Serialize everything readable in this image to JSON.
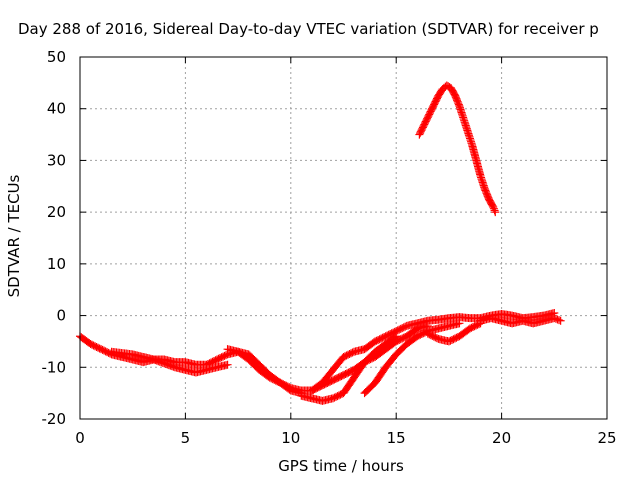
{
  "chart_data": {
    "type": "scatter",
    "title": "Day 288 of 2016, Sidereal Day-to-day VTEC variation (SDTVAR) for receiver p",
    "xlabel": "GPS time / hours",
    "ylabel": "SDTVAR / TECUs",
    "xlim": [
      0,
      25
    ],
    "ylim": [
      -20,
      50
    ],
    "xticks": [
      0,
      5,
      10,
      15,
      20,
      25
    ],
    "yticks": [
      -20,
      -10,
      0,
      10,
      20,
      30,
      40,
      50
    ],
    "grid": true,
    "marker": "+",
    "color": "#ff0000",
    "series": [
      {
        "x": [
          0.0,
          0.5,
          1.0,
          1.5,
          2.0,
          2.5,
          3.0,
          3.5,
          4.0,
          4.5,
          5.0,
          5.5,
          6.0,
          6.5,
          7.0,
          7.5,
          8.0,
          8.5,
          9.0,
          9.5,
          10.0,
          10.5,
          11.0,
          11.5,
          12.0,
          12.5,
          13.0,
          13.5,
          14.0,
          14.5,
          15.0,
          15.5,
          16.0,
          16.5,
          17.0,
          17.5,
          18.0,
          18.5,
          19.0,
          19.5,
          20.0,
          20.5,
          21.0,
          21.5,
          22.0,
          22.5
        ],
        "y": [
          -4,
          -5.5,
          -6.5,
          -7.5,
          -8,
          -8.5,
          -9,
          -8.5,
          -8.5,
          -9,
          -9,
          -9.5,
          -9.5,
          -8.5,
          -7.5,
          -7,
          -8.5,
          -10.5,
          -12,
          -13,
          -14,
          -14.5,
          -14.5,
          -13,
          -10.5,
          -8,
          -7,
          -6.5,
          -5,
          -4,
          -3,
          -2,
          -1.5,
          -1,
          -0.8,
          -0.5,
          -0.3,
          -0.5,
          -0.5,
          0,
          0.3,
          0,
          -0.5,
          -0.3,
          0,
          0.5
        ]
      },
      {
        "x": [
          1.5,
          2.5,
          3.5,
          4.5,
          5.5,
          6.5,
          7.0
        ],
        "y": [
          -7,
          -7.5,
          -8.5,
          -10,
          -11,
          -10,
          -9.5
        ]
      },
      {
        "x": [
          7.0,
          8.0,
          8.5,
          9.0,
          9.5,
          10.0,
          10.5
        ],
        "y": [
          -6.5,
          -7.5,
          -9.5,
          -11.5,
          -13,
          -14.5,
          -15
        ]
      },
      {
        "x": [
          10.5,
          11.0,
          11.5,
          12.0,
          12.5,
          13.0,
          13.5,
          14.0,
          14.5,
          15.0
        ],
        "y": [
          -15.5,
          -16,
          -16.5,
          -16,
          -15,
          -12,
          -9,
          -7,
          -5.5,
          -4
        ]
      },
      {
        "x": [
          11.0,
          12.0,
          13.0,
          13.5,
          14.0,
          14.5,
          15.0,
          15.5,
          16.0,
          16.5
        ],
        "y": [
          -14.5,
          -12.5,
          -10.5,
          -9,
          -8,
          -6.5,
          -5,
          -4,
          -2.5,
          -2
        ]
      },
      {
        "x": [
          13.5,
          14.0,
          14.5,
          15.0,
          15.5,
          16.0,
          16.5,
          17.0,
          17.5,
          18.0
        ],
        "y": [
          -15,
          -13,
          -10,
          -7.5,
          -5.5,
          -4,
          -3,
          -2.5,
          -2,
          -1.5
        ]
      },
      {
        "x": [
          16.5,
          17.0,
          17.5,
          18.0,
          18.5,
          19.0
        ],
        "y": [
          -3.5,
          -4.5,
          -5,
          -4,
          -2.5,
          -1.5
        ]
      },
      {
        "x": [
          16.1,
          16.4,
          16.7,
          17.0,
          17.2,
          17.4,
          17.6,
          17.8,
          18.0,
          18.2,
          18.4,
          18.6,
          18.8,
          19.0,
          19.2,
          19.4,
          19.6,
          19.7
        ],
        "y": [
          35,
          37.5,
          40,
          42.5,
          43.8,
          44.5,
          44,
          42.5,
          40.5,
          38,
          35.5,
          33,
          30,
          27,
          24.5,
          22.5,
          21,
          20
        ]
      },
      {
        "x": [
          19.0,
          19.5,
          20.0,
          20.5,
          21.0,
          21.5,
          22.0,
          22.5,
          22.8
        ],
        "y": [
          -1,
          -0.5,
          -1,
          -1.5,
          -1,
          -1.5,
          -1,
          -0.5,
          -1
        ]
      }
    ]
  }
}
